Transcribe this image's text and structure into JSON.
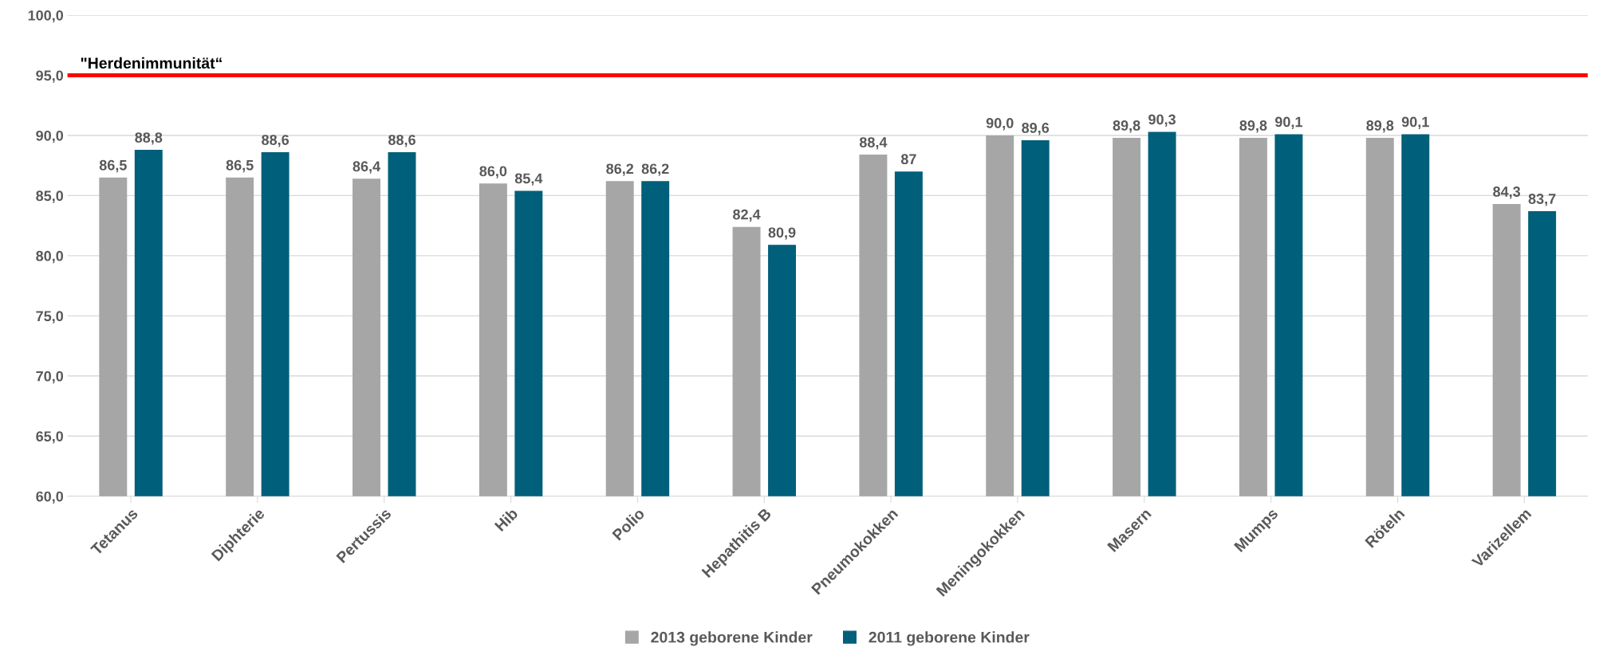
{
  "chart_data": {
    "type": "bar",
    "categories": [
      "Tetanus",
      "Diphterie",
      "Pertussis",
      "Hib",
      "Polio",
      "Hepathitis B",
      "Pneumokokken",
      "Meningokokken",
      "Masern",
      "Mumps",
      "Röteln",
      "Varizellem"
    ],
    "series": [
      {
        "name": "2013 geborene Kinder",
        "color": "#a6a6a6",
        "values": [
          86.5,
          86.5,
          86.4,
          86.0,
          86.2,
          82.4,
          88.4,
          90.0,
          89.8,
          89.8,
          89.8,
          84.3
        ],
        "value_labels": [
          "86,5",
          "86,5",
          "86,4",
          "86,0",
          "86,2",
          "82,4",
          "88,4",
          "90,0",
          "89,8",
          "89,8",
          "89,8",
          "84,3"
        ]
      },
      {
        "name": "2011 geborene Kinder",
        "color": "#005f7a",
        "values": [
          88.8,
          88.6,
          88.6,
          85.4,
          86.2,
          80.9,
          87.0,
          89.6,
          90.3,
          90.1,
          90.1,
          83.7
        ],
        "value_labels": [
          "88,8",
          "88,6",
          "88,6",
          "85,4",
          "86,2",
          "80,9",
          "87",
          "89,6",
          "90,3",
          "90,1",
          "90,1",
          "83,7"
        ]
      }
    ],
    "ylim": [
      60,
      100
    ],
    "yticks": [
      {
        "value": 60,
        "label": "60,0"
      },
      {
        "value": 65,
        "label": "65,0"
      },
      {
        "value": 70,
        "label": "70,0"
      },
      {
        "value": 75,
        "label": "75,0"
      },
      {
        "value": 80,
        "label": "80,0"
      },
      {
        "value": 85,
        "label": "85,0"
      },
      {
        "value": 90,
        "label": "90,0"
      },
      {
        "value": 95,
        "label": "95,0"
      },
      {
        "value": 100,
        "label": "100,0"
      }
    ],
    "ref_lines": [
      {
        "axis": "y",
        "value": 95,
        "label": "\"Herdenimmunität“",
        "color": "#ff0000"
      }
    ],
    "grid": "y",
    "legend": "bottom"
  }
}
